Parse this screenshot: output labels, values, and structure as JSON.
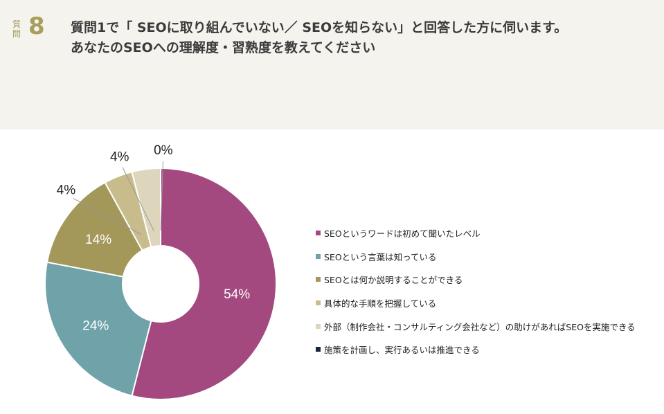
{
  "header": {
    "question_label": "質問",
    "question_number": "8",
    "title_line1": "質問1で「 SEOに取り組んでいない／ SEOを知らない」と回答した方に伺います。",
    "title_line2": "あなたのSEOへの理解度・習熟度を教えてください"
  },
  "chart_data": {
    "type": "pie",
    "donut": true,
    "categories": [
      "SEOというワードは初めて聞いたレベル",
      "SEOという言葉は知っている",
      "SEOとは何か説明することができる",
      "具体的な手順を把握している",
      "外部（制作会社・コンサルティング会社など）の助けがあればSEOを実施できる",
      "施策を計画し、実行あるいは推進できる"
    ],
    "values": [
      54,
      24,
      14,
      4,
      4,
      0
    ],
    "labels": [
      "54%",
      "24%",
      "14%",
      "4%",
      "4%",
      "0%"
    ],
    "colors": [
      "#a3497f",
      "#6fa3a9",
      "#a3985a",
      "#c8bc8c",
      "#ddd6bd",
      "#1a2440"
    ],
    "legend_position": "right"
  }
}
